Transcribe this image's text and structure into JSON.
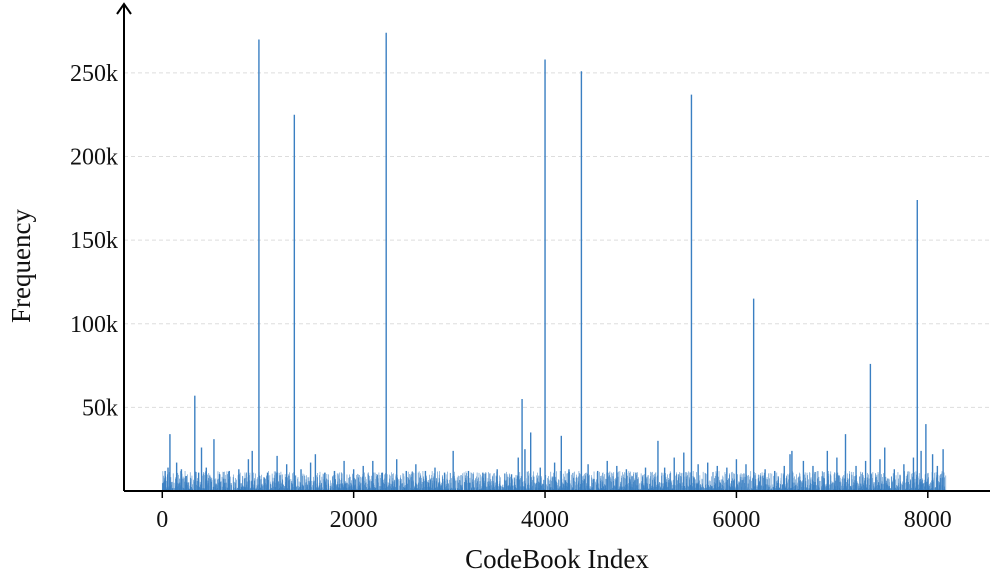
{
  "chart_data": {
    "type": "bar",
    "xlabel": "CodeBook Index",
    "ylabel": "Frequency",
    "xlim": [
      -400,
      8650
    ],
    "ylim": [
      0,
      290000
    ],
    "x_ticks": [
      {
        "value": 0,
        "label": "0"
      },
      {
        "value": 2000,
        "label": "2000"
      },
      {
        "value": 4000,
        "label": "4000"
      },
      {
        "value": 6000,
        "label": "6000"
      },
      {
        "value": 8000,
        "label": "8000"
      }
    ],
    "y_ticks": [
      {
        "value": 50000,
        "label": "50k"
      },
      {
        "value": 100000,
        "label": "100k"
      },
      {
        "value": 150000,
        "label": "150k"
      },
      {
        "value": 200000,
        "label": "200k"
      },
      {
        "value": 250000,
        "label": "250k"
      }
    ],
    "grid": {
      "y": true,
      "x": false
    },
    "index_range": [
      0,
      8191
    ],
    "baseline_range": [
      0,
      12000
    ],
    "series": [
      {
        "color": "#3a7fc2",
        "points": [
          {
            "x": 30,
            "y": 12000
          },
          {
            "x": 60,
            "y": 14000
          },
          {
            "x": 80,
            "y": 34000
          },
          {
            "x": 150,
            "y": 17000
          },
          {
            "x": 200,
            "y": 13000
          },
          {
            "x": 250,
            "y": 9000
          },
          {
            "x": 340,
            "y": 57000
          },
          {
            "x": 380,
            "y": 11000
          },
          {
            "x": 410,
            "y": 26000
          },
          {
            "x": 460,
            "y": 14000
          },
          {
            "x": 540,
            "y": 31000
          },
          {
            "x": 600,
            "y": 10000
          },
          {
            "x": 700,
            "y": 12000
          },
          {
            "x": 800,
            "y": 13000
          },
          {
            "x": 900,
            "y": 19000
          },
          {
            "x": 940,
            "y": 24000
          },
          {
            "x": 1010,
            "y": 270000
          },
          {
            "x": 1100,
            "y": 11000
          },
          {
            "x": 1200,
            "y": 21000
          },
          {
            "x": 1300,
            "y": 16000
          },
          {
            "x": 1380,
            "y": 225000
          },
          {
            "x": 1450,
            "y": 13000
          },
          {
            "x": 1550,
            "y": 17000
          },
          {
            "x": 1600,
            "y": 22000
          },
          {
            "x": 1700,
            "y": 11000
          },
          {
            "x": 1800,
            "y": 12000
          },
          {
            "x": 1900,
            "y": 18000
          },
          {
            "x": 2000,
            "y": 13000
          },
          {
            "x": 2100,
            "y": 15000
          },
          {
            "x": 2200,
            "y": 18000
          },
          {
            "x": 2300,
            "y": 11000
          },
          {
            "x": 2340,
            "y": 274000
          },
          {
            "x": 2450,
            "y": 19000
          },
          {
            "x": 2550,
            "y": 12000
          },
          {
            "x": 2650,
            "y": 16000
          },
          {
            "x": 2750,
            "y": 12000
          },
          {
            "x": 2850,
            "y": 14000
          },
          {
            "x": 2950,
            "y": 11000
          },
          {
            "x": 3040,
            "y": 24000
          },
          {
            "x": 3200,
            "y": 12000
          },
          {
            "x": 3350,
            "y": 11000
          },
          {
            "x": 3500,
            "y": 13000
          },
          {
            "x": 3650,
            "y": 10000
          },
          {
            "x": 3720,
            "y": 20000
          },
          {
            "x": 3760,
            "y": 55000
          },
          {
            "x": 3790,
            "y": 25000
          },
          {
            "x": 3850,
            "y": 35000
          },
          {
            "x": 3950,
            "y": 14000
          },
          {
            "x": 4000,
            "y": 258000
          },
          {
            "x": 4100,
            "y": 17000
          },
          {
            "x": 4170,
            "y": 33000
          },
          {
            "x": 4250,
            "y": 13000
          },
          {
            "x": 4380,
            "y": 251000
          },
          {
            "x": 4450,
            "y": 16000
          },
          {
            "x": 4550,
            "y": 12000
          },
          {
            "x": 4650,
            "y": 18000
          },
          {
            "x": 4750,
            "y": 15000
          },
          {
            "x": 4850,
            "y": 13000
          },
          {
            "x": 4950,
            "y": 11000
          },
          {
            "x": 5050,
            "y": 14000
          },
          {
            "x": 5180,
            "y": 30000
          },
          {
            "x": 5250,
            "y": 14000
          },
          {
            "x": 5350,
            "y": 20000
          },
          {
            "x": 5450,
            "y": 23000
          },
          {
            "x": 5530,
            "y": 237000
          },
          {
            "x": 5600,
            "y": 16000
          },
          {
            "x": 5700,
            "y": 17000
          },
          {
            "x": 5800,
            "y": 15000
          },
          {
            "x": 5900,
            "y": 14000
          },
          {
            "x": 6000,
            "y": 19000
          },
          {
            "x": 6100,
            "y": 16000
          },
          {
            "x": 6180,
            "y": 115000
          },
          {
            "x": 6300,
            "y": 13000
          },
          {
            "x": 6400,
            "y": 12000
          },
          {
            "x": 6500,
            "y": 15000
          },
          {
            "x": 6560,
            "y": 22000
          },
          {
            "x": 6580,
            "y": 24000
          },
          {
            "x": 6700,
            "y": 18000
          },
          {
            "x": 6800,
            "y": 15000
          },
          {
            "x": 6950,
            "y": 24000
          },
          {
            "x": 7050,
            "y": 20000
          },
          {
            "x": 7140,
            "y": 34000
          },
          {
            "x": 7250,
            "y": 15000
          },
          {
            "x": 7350,
            "y": 18000
          },
          {
            "x": 7400,
            "y": 76000
          },
          {
            "x": 7500,
            "y": 19000
          },
          {
            "x": 7550,
            "y": 26000
          },
          {
            "x": 7650,
            "y": 13000
          },
          {
            "x": 7750,
            "y": 16000
          },
          {
            "x": 7850,
            "y": 20000
          },
          {
            "x": 7890,
            "y": 174000
          },
          {
            "x": 7930,
            "y": 24000
          },
          {
            "x": 7980,
            "y": 40000
          },
          {
            "x": 8050,
            "y": 22000
          },
          {
            "x": 8100,
            "y": 15000
          },
          {
            "x": 8160,
            "y": 25000
          }
        ]
      }
    ]
  }
}
